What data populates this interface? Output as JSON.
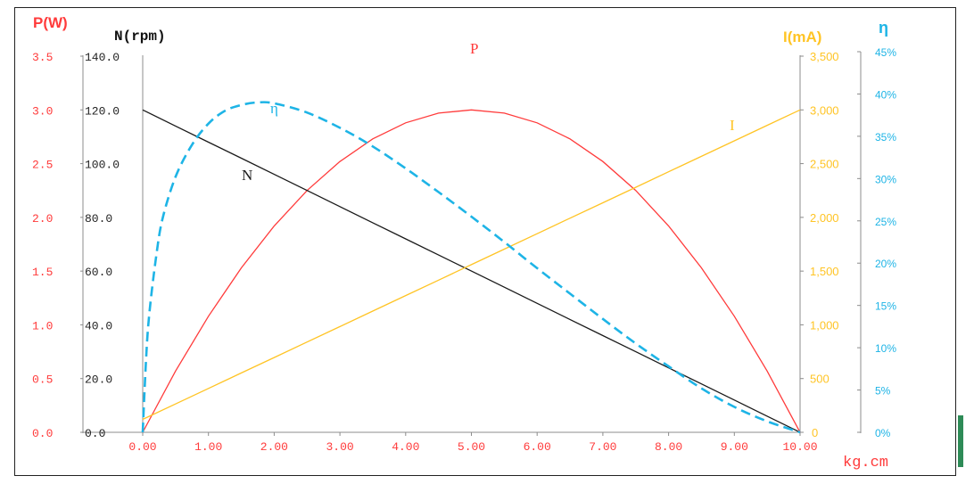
{
  "chart_data": {
    "type": "line",
    "x": [
      0,
      0.5,
      1,
      1.5,
      2,
      2.5,
      3,
      3.5,
      4,
      4.5,
      5,
      5.5,
      6,
      6.5,
      7,
      7.5,
      8,
      8.5,
      9,
      9.5,
      10
    ],
    "xlabel": "kg.cm",
    "xlim": [
      0,
      10
    ],
    "x_ticks": [
      "0.00",
      "1.00",
      "2.00",
      "3.00",
      "4.00",
      "5.00",
      "6.00",
      "7.00",
      "8.00",
      "9.00",
      "10.00"
    ],
    "grid": false,
    "legend": "none (inline curve labels)",
    "axes": {
      "P": {
        "label": "P(W)",
        "ylim": [
          0,
          3.5
        ],
        "ticks": [
          "0.0",
          "0.5",
          "1.0",
          "1.5",
          "2.0",
          "2.5",
          "3.0",
          "3.5"
        ]
      },
      "N": {
        "label": "N(rpm)",
        "ylim": [
          0,
          140
        ],
        "ticks": [
          "0.0",
          "20.0",
          "40.0",
          "60.0",
          "80.0",
          "100.0",
          "120.0",
          "140.0"
        ]
      },
      "I": {
        "label": "I(mA)",
        "ylim": [
          0,
          3500
        ],
        "ticks": [
          "0",
          "500",
          "1,000",
          "1,500",
          "2,000",
          "2,500",
          "3,000",
          "3,500"
        ]
      },
      "eta": {
        "label": "η",
        "ylim": [
          0,
          45
        ],
        "ticks": [
          "0%",
          "5%",
          "10%",
          "15%",
          "20%",
          "25%",
          "30%",
          "35%",
          "40%",
          "45%"
        ]
      }
    },
    "series": [
      {
        "name": "P",
        "axis": "P",
        "style": "solid",
        "color": "#ff3b3b",
        "values": [
          0,
          0.57,
          1.08,
          1.53,
          1.92,
          2.25,
          2.52,
          2.73,
          2.88,
          2.97,
          3.0,
          2.97,
          2.88,
          2.73,
          2.52,
          2.25,
          1.92,
          1.53,
          1.08,
          0.57,
          0
        ]
      },
      {
        "name": "N",
        "axis": "N",
        "style": "solid",
        "color": "#1a1a1a",
        "values": [
          120,
          114,
          108,
          102,
          96,
          90,
          84,
          78,
          72,
          66,
          60,
          54,
          48,
          42,
          36,
          30,
          24,
          18,
          12,
          6,
          0
        ]
      },
      {
        "name": "I",
        "axis": "I",
        "style": "solid",
        "color": "#ffc425",
        "values": [
          120,
          264,
          408,
          552,
          696,
          840,
          984,
          1128,
          1272,
          1416,
          1560,
          1704,
          1848,
          1992,
          2136,
          2280,
          2424,
          2568,
          2712,
          2856,
          3000
        ]
      },
      {
        "name": "η",
        "axis": "eta",
        "style": "dashed",
        "color": "#1eb4e6",
        "x": [
          0,
          0.05,
          0.1,
          0.2,
          0.3,
          0.5,
          0.75,
          1.0,
          1.25,
          1.5,
          1.75,
          2.0,
          2.5,
          3.0,
          3.5,
          4.0,
          4.5,
          5.0,
          5.5,
          6.0,
          6.5,
          7.0,
          7.5,
          8.0,
          8.5,
          9.0,
          9.5,
          10.0
        ],
        "values": [
          0,
          8.5,
          14.0,
          20.5,
          25.2,
          30.2,
          34.0,
          36.5,
          38.0,
          38.7,
          39.0,
          38.9,
          37.8,
          36.0,
          33.8,
          31.2,
          28.4,
          25.5,
          22.5,
          19.4,
          16.4,
          13.4,
          10.5,
          7.8,
          5.2,
          3.0,
          1.3,
          0
        ]
      }
    ]
  }
}
